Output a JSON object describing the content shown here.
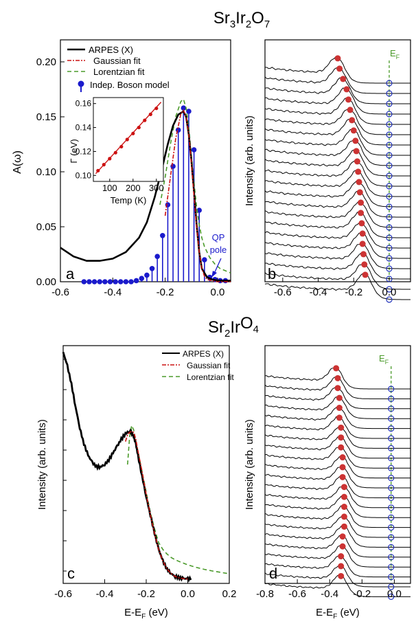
{
  "figure_titles": {
    "top": {
      "base": [
        "Sr",
        "Ir",
        "O"
      ],
      "subs": [
        "3",
        "2",
        "7"
      ]
    },
    "bottom": {
      "base": [
        "Sr",
        "Ir",
        "O"
      ],
      "subs": [
        "2",
        "",
        "4"
      ]
    }
  },
  "colors": {
    "arpes": "#000000",
    "gaussian": "#cc1111",
    "lorentzian": "#4a9a2a",
    "boson": "#1a1acc",
    "peak_marker": "#cc3333",
    "ef_marker": "#2233bb",
    "ef_line": "#4a9a2a"
  },
  "chart_data": [
    {
      "panel": "a",
      "type": "line",
      "xlim": [
        -0.6,
        0.05
      ],
      "ylim": [
        0,
        0.22
      ],
      "xticks": [
        -0.6,
        -0.4,
        -0.2,
        0.0
      ],
      "xtick_labels": [
        "-0.6",
        "-0.4",
        "-0.2",
        "0.0"
      ],
      "yticks": [
        0,
        0.05,
        0.1,
        0.15,
        0.2
      ],
      "ytick_labels": [
        "0.00",
        "0.05",
        "0.10",
        "0.15",
        "0.20"
      ],
      "ylabel": "A(ω)",
      "legend": [
        "ARPES (X)",
        "Gaussian fit",
        "Lorentzian fit",
        "Indep. Boson model"
      ],
      "annotation": {
        "text_line1": "QP",
        "text_line2": "pole"
      },
      "series": [
        {
          "name": "ARPES (X)",
          "x": [
            -0.6,
            -0.55,
            -0.5,
            -0.45,
            -0.4,
            -0.35,
            -0.3,
            -0.27,
            -0.24,
            -0.21,
            -0.19,
            -0.17,
            -0.15,
            -0.13,
            -0.12,
            -0.11,
            -0.1,
            -0.09,
            -0.08,
            -0.07,
            -0.06,
            -0.04,
            -0.02,
            0.0,
            0.02,
            0.05
          ],
          "y": [
            0.031,
            0.023,
            0.019,
            0.019,
            0.021,
            0.027,
            0.04,
            0.054,
            0.077,
            0.105,
            0.125,
            0.142,
            0.152,
            0.155,
            0.15,
            0.134,
            0.11,
            0.082,
            0.052,
            0.027,
            0.012,
            0.004,
            0.002,
            0.001,
            0.001,
            0.001
          ]
        },
        {
          "name": "Gaussian fit",
          "x": [
            -0.2,
            -0.18,
            -0.16,
            -0.14,
            -0.13,
            -0.12,
            -0.11,
            -0.1,
            -0.09,
            -0.08,
            -0.07,
            -0.06,
            -0.05,
            -0.04,
            -0.02,
            0.0,
            0.05
          ],
          "y": [
            0.06,
            0.095,
            0.13,
            0.153,
            0.156,
            0.15,
            0.134,
            0.108,
            0.078,
            0.05,
            0.027,
            0.012,
            0.005,
            0.002,
            0.001,
            0.0,
            0.0
          ]
        },
        {
          "name": "Lorentzian fit",
          "x": [
            -0.22,
            -0.2,
            -0.18,
            -0.16,
            -0.14,
            -0.13,
            -0.12,
            -0.11,
            -0.1,
            -0.09,
            -0.08,
            -0.07,
            -0.06,
            -0.05,
            -0.03,
            -0.01,
            0.01,
            0.03,
            0.05
          ],
          "y": [
            0.07,
            0.095,
            0.125,
            0.15,
            0.164,
            0.166,
            0.158,
            0.14,
            0.115,
            0.09,
            0.068,
            0.052,
            0.04,
            0.032,
            0.022,
            0.016,
            0.012,
            0.01,
            0.008
          ]
        },
        {
          "name": "Indep. Boson model",
          "x": [
            -0.51,
            -0.49,
            -0.47,
            -0.45,
            -0.43,
            -0.41,
            -0.39,
            -0.37,
            -0.35,
            -0.33,
            -0.31,
            -0.29,
            -0.27,
            -0.25,
            -0.23,
            -0.21,
            -0.19,
            -0.17,
            -0.15,
            -0.13,
            -0.11,
            -0.09,
            -0.07,
            -0.05,
            -0.03,
            -0.01,
            0.01,
            0.03
          ],
          "y": [
            0,
            0,
            0,
            0,
            0,
            0,
            0,
            0,
            0,
            0,
            0.001,
            0.003,
            0.006,
            0.012,
            0.023,
            0.042,
            0.07,
            0.105,
            0.138,
            0.158,
            0.155,
            0.12,
            0.065,
            0.02,
            0.004,
            0.002,
            0.001,
            0.001
          ]
        }
      ],
      "inset": {
        "xlabel": "Temp (K)",
        "ylabel": "Γ (eV)",
        "xlim": [
          30,
          330
        ],
        "ylim": [
          0.095,
          0.165
        ],
        "xticks": [
          100,
          200,
          300
        ],
        "yticks": [
          0.1,
          0.12,
          0.14,
          0.16
        ],
        "ytick_labels": [
          "0.10",
          "0.12",
          "0.14",
          "0.16"
        ],
        "x": [
          50,
          75,
          100,
          125,
          150,
          175,
          200,
          225,
          250,
          275,
          300
        ],
        "y": [
          0.104,
          0.109,
          0.114,
          0.119,
          0.124,
          0.13,
          0.135,
          0.14,
          0.146,
          0.151,
          0.156
        ]
      }
    },
    {
      "panel": "b",
      "type": "line",
      "xlim": [
        -0.7,
        0.12
      ],
      "xticks": [
        -0.6,
        -0.4,
        -0.2,
        0.0
      ],
      "xtick_labels": [
        "-0.6",
        "-0.4",
        "-0.2",
        "0.0"
      ],
      "ylabel": "Intensity (arb. units)",
      "ef_label": {
        "base": "E",
        "sub": "F"
      },
      "n_curves": 22,
      "peak_positions": [
        -0.29,
        -0.28,
        -0.26,
        -0.24,
        -0.23,
        -0.22,
        -0.21,
        -0.2,
        -0.19,
        -0.185,
        -0.18,
        -0.175,
        -0.17,
        -0.165,
        -0.16,
        -0.16,
        -0.155,
        -0.15,
        -0.15,
        -0.145,
        -0.14,
        -0.135
      ],
      "ef_position": 0.0
    },
    {
      "panel": "c",
      "type": "line",
      "xlim": [
        -0.6,
        0.2
      ],
      "xticks": [
        -0.6,
        -0.4,
        -0.2,
        0.0,
        0.2
      ],
      "xtick_labels": [
        "-0.6",
        "-0.4",
        "-0.2",
        "0.0",
        "0.2"
      ],
      "xlabel": {
        "base": "E-E",
        "sub": "F",
        "unit": " (eV)"
      },
      "ylabel": "Intensity (arb. units)",
      "ylim": [
        0,
        1.0
      ],
      "legend": [
        "ARPES (X)",
        "Gaussian fit",
        "Lorentzian fit"
      ],
      "series": [
        {
          "name": "ARPES (X)",
          "x": [
            -0.6,
            -0.58,
            -0.56,
            -0.54,
            -0.52,
            -0.5,
            -0.48,
            -0.46,
            -0.44,
            -0.42,
            -0.4,
            -0.38,
            -0.36,
            -0.34,
            -0.32,
            -0.3,
            -0.28,
            -0.27,
            -0.26,
            -0.25,
            -0.24,
            -0.22,
            -0.2,
            -0.18,
            -0.16,
            -0.14,
            -0.12,
            -0.1,
            -0.08,
            -0.06,
            -0.04,
            -0.02,
            0.0,
            0.02
          ],
          "y": [
            0.99,
            0.93,
            0.85,
            0.75,
            0.66,
            0.59,
            0.54,
            0.51,
            0.49,
            0.49,
            0.5,
            0.52,
            0.55,
            0.58,
            0.61,
            0.635,
            0.645,
            0.64,
            0.62,
            0.59,
            0.54,
            0.45,
            0.36,
            0.28,
            0.2,
            0.13,
            0.08,
            0.045,
            0.025,
            0.012,
            0.006,
            0.003,
            0.002,
            0.002
          ]
        },
        {
          "name": "Gaussian fit",
          "x": [
            -0.3,
            -0.29,
            -0.28,
            -0.27,
            -0.26,
            -0.25,
            -0.24,
            -0.22,
            -0.2,
            -0.18,
            -0.16,
            -0.14,
            -0.12,
            -0.1,
            -0.08,
            -0.06,
            -0.04,
            -0.02,
            0.0
          ],
          "y": [
            0.6,
            0.63,
            0.64,
            0.645,
            0.64,
            0.61,
            0.56,
            0.47,
            0.37,
            0.28,
            0.2,
            0.13,
            0.08,
            0.045,
            0.025,
            0.012,
            0.006,
            0.003,
            0.001
          ]
        },
        {
          "name": "Lorentzian fit",
          "x": [
            -0.29,
            -0.28,
            -0.27,
            -0.26,
            -0.25,
            -0.24,
            -0.22,
            -0.2,
            -0.18,
            -0.16,
            -0.14,
            -0.12,
            -0.1,
            -0.08,
            -0.06,
            -0.04,
            -0.02,
            0.0,
            0.04,
            0.08,
            0.12,
            0.16,
            0.2
          ],
          "y": [
            0.5,
            0.62,
            0.67,
            0.65,
            0.6,
            0.56,
            0.47,
            0.38,
            0.29,
            0.22,
            0.16,
            0.13,
            0.11,
            0.095,
            0.085,
            0.077,
            0.07,
            0.063,
            0.052,
            0.043,
            0.036,
            0.03,
            0.024
          ]
        }
      ]
    },
    {
      "panel": "d",
      "type": "line",
      "xlim": [
        -0.8,
        0.1
      ],
      "xticks": [
        -0.8,
        -0.6,
        -0.4,
        -0.2,
        0.0
      ],
      "xtick_labels": [
        "-0.8",
        "-0.6",
        "-0.4",
        "-0.2",
        "0.0"
      ],
      "xlabel": {
        "base": "E-E",
        "sub": "F",
        "unit": " (eV)"
      },
      "ylabel": "Intensity (arb. units)",
      "ef_label": {
        "base": "E",
        "sub": "F"
      },
      "n_curves": 22,
      "peak_positions": [
        -0.36,
        -0.35,
        -0.35,
        -0.34,
        -0.34,
        -0.34,
        -0.33,
        -0.33,
        -0.33,
        -0.32,
        -0.32,
        -0.32,
        -0.31,
        -0.31,
        -0.31,
        -0.31,
        -0.31,
        -0.32,
        -0.32,
        -0.33,
        -0.33,
        -0.33
      ],
      "ef_position": -0.02
    }
  ]
}
